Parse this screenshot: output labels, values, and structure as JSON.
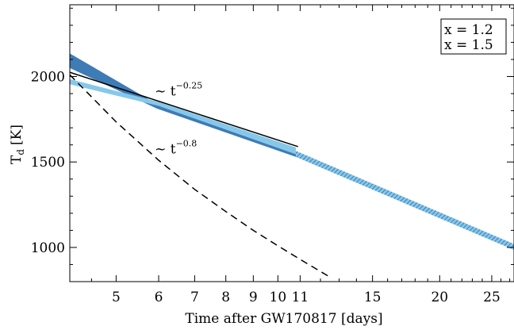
{
  "chart_data": {
    "type": "line",
    "xlabel": "Time after GW170817 [days]",
    "ylabel_main": "T",
    "ylabel_sub": "d",
    "ylabel_unit": "[K]",
    "x_scale": "log",
    "xlim": [
      4.1,
      27.5
    ],
    "ylim": [
      800,
      2420
    ],
    "x_ticks": [
      {
        "value": 5,
        "label": "5"
      },
      {
        "value": 6,
        "label": "6"
      },
      {
        "value": 7,
        "label": "7"
      },
      {
        "value": 8,
        "label": "8"
      },
      {
        "value": 9,
        "label": "9"
      },
      {
        "value": 10,
        "label": "10"
      },
      {
        "value": 11,
        "label": "11"
      },
      {
        "value": 15,
        "label": "15"
      },
      {
        "value": 20,
        "label": "20"
      },
      {
        "value": 25,
        "label": "25"
      }
    ],
    "y_ticks": [
      {
        "value": 1000,
        "label": "1000"
      },
      {
        "value": 1500,
        "label": "1500"
      },
      {
        "value": 2000,
        "label": "2000"
      }
    ],
    "grid": false,
    "legend_position": "top-right",
    "series": [
      {
        "name": "x = 1.2",
        "color": "#3f7bb5",
        "style": "band",
        "x": [
          4.1,
          5.96,
          10.8
        ],
        "upper": [
          2135,
          1838,
          1575
        ],
        "lower": [
          2050,
          1812,
          1530
        ]
      },
      {
        "name": "x = 1.5",
        "color": "#86c8ea",
        "style": "band",
        "x": [
          4.1,
          6.0,
          10.8
        ],
        "upper": [
          1985,
          1852,
          1585
        ],
        "lower": [
          1955,
          1828,
          1545
        ]
      },
      {
        "color": "#5e9ecf",
        "style": "hatched-band",
        "x": [
          10.8,
          27.5
        ],
        "upper": [
          1565,
          1020
        ],
        "lower": [
          1530,
          985
        ]
      },
      {
        "color": "#000000",
        "style": "solid",
        "x": [
          4.1,
          10.9
        ],
        "y": [
          2025,
          1590
        ]
      },
      {
        "color": "#000000",
        "style": "dashed",
        "x": [
          4.1,
          5,
          6,
          7,
          8,
          9,
          10,
          11,
          12.6
        ],
        "y": [
          2010,
          1735,
          1510,
          1340,
          1210,
          1100,
          1010,
          930,
          820
        ]
      }
    ],
    "annotations": [
      {
        "base": "~ t",
        "exponent": "−0.25",
        "x": 5.9,
        "y": 1888
      },
      {
        "base": "~ t",
        "exponent": "−0.8",
        "x": 5.9,
        "y": 1550
      }
    ]
  }
}
